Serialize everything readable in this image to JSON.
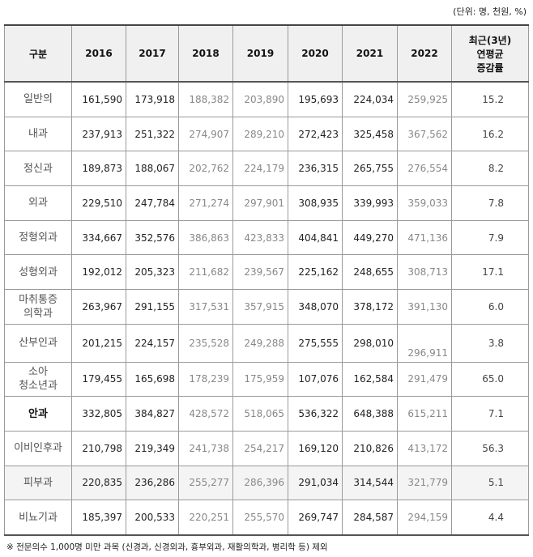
{
  "unit_note": "(단위: 명, 천원, %)",
  "table": {
    "header": {
      "label": "구분",
      "years": [
        "2016",
        "2017",
        "2018",
        "2019",
        "2020",
        "2021",
        "2022"
      ],
      "rate": [
        "최근(3년)",
        "연평균",
        "증감률"
      ]
    },
    "rows": [
      {
        "label": [
          "일반의"
        ],
        "values": [
          "161,590",
          "173,918",
          "188,382",
          "203,890",
          "195,693",
          "224,034",
          "259,925"
        ],
        "rate": "15.2"
      },
      {
        "label": [
          "내과"
        ],
        "values": [
          "237,913",
          "251,322",
          "274,907",
          "289,210",
          "272,423",
          "325,458",
          "367,562"
        ],
        "rate": "16.2"
      },
      {
        "label": [
          "정신과"
        ],
        "values": [
          "189,873",
          "188,067",
          "202,762",
          "224,179",
          "236,315",
          "265,755",
          "276,554"
        ],
        "rate": "8.2"
      },
      {
        "label": [
          "외과"
        ],
        "values": [
          "229,510",
          "247,784",
          "271,274",
          "297,901",
          "308,935",
          "339,993",
          "359,033"
        ],
        "rate": "7.8"
      },
      {
        "label": [
          "정형외과"
        ],
        "values": [
          "334,667",
          "352,576",
          "386,863",
          "423,833",
          "404,841",
          "449,270",
          "471,136"
        ],
        "rate": "7.9"
      },
      {
        "label": [
          "성형외과"
        ],
        "values": [
          "192,012",
          "205,323",
          "211,682",
          "239,567",
          "225,162",
          "248,655",
          "308,713"
        ],
        "rate": "17.1"
      },
      {
        "label": [
          "마취통증",
          "의학과"
        ],
        "values": [
          "263,967",
          "291,155",
          "317,531",
          "357,915",
          "348,070",
          "378,172",
          "391,130"
        ],
        "rate": "6.0"
      },
      {
        "label": [
          "산부인과"
        ],
        "values": [
          "201,215",
          "224,157",
          "235,528",
          "249,288",
          "275,555",
          "298,010",
          "296,911"
        ],
        "rate": "3.8"
      },
      {
        "label": [
          "소아",
          "청소년과"
        ],
        "values": [
          "179,455",
          "165,698",
          "178,239",
          "175,959",
          "107,076",
          "162,584",
          "291,479"
        ],
        "rate": "65.0"
      },
      {
        "label": [
          "안과"
        ],
        "values": [
          "332,805",
          "384,827",
          "428,572",
          "518,065",
          "536,322",
          "648,388",
          "615,211"
        ],
        "rate": "7.1"
      },
      {
        "label": [
          "이비인후과"
        ],
        "values": [
          "210,798",
          "219,349",
          "241,738",
          "254,217",
          "169,120",
          "210,826",
          "413,172"
        ],
        "rate": "56.3"
      },
      {
        "label": [
          "피부과"
        ],
        "values": [
          "220,835",
          "236,286",
          "255,277",
          "286,396",
          "291,034",
          "314,544",
          "321,779"
        ],
        "rate": "5.1"
      },
      {
        "label": [
          "비뇨기과"
        ],
        "values": [
          "185,397",
          "200,533",
          "220,251",
          "255,570",
          "269,747",
          "284,587",
          "294,159"
        ],
        "rate": "4.4"
      }
    ]
  },
  "footnote": "※  전문의수 1,000명 미만 과목 (신경과, 신경외과, 흉부외과, 재활의학과, 병리학 등) 제외"
}
